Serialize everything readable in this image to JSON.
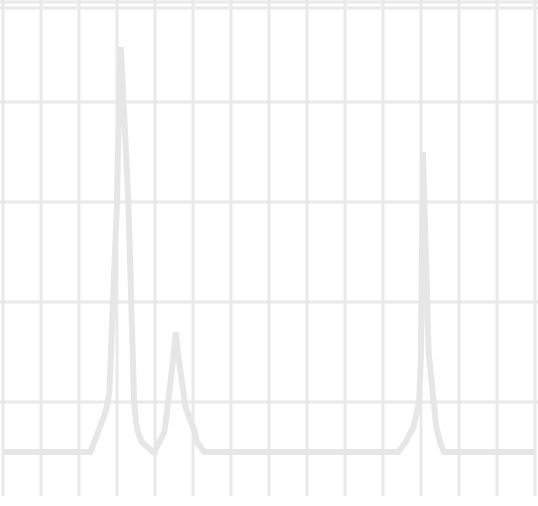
{
  "colors": {
    "grid": "#e9e9e9",
    "trace": "#e6e6e6",
    "background": "#ffffff"
  },
  "chart_data": {
    "type": "line",
    "title": "",
    "xlabel": "",
    "ylabel": "",
    "grid": true,
    "legend": "none",
    "xlim": [
      0,
      14
    ],
    "ylim": [
      0,
      5
    ],
    "grid_x": [
      0,
      1,
      2,
      3,
      4,
      5,
      6,
      7,
      8,
      9,
      10,
      11,
      12,
      13,
      14
    ],
    "grid_y": [
      0.5,
      1.5,
      2.5,
      3.5,
      4.5
    ],
    "series": [
      {
        "x": [
          0,
          2.3,
          2.4,
          2.55,
          2.7,
          2.8,
          3.0,
          3.05,
          3.1,
          3.3,
          3.45,
          3.5,
          3.55,
          3.65,
          3.8,
          3.95,
          4.0,
          4.05,
          4.25,
          4.5,
          4.55,
          4.6,
          4.8,
          5.05,
          5.1,
          5.2,
          5.3,
          5.45,
          5.55,
          5.6,
          10.4,
          10.5,
          10.6,
          10.8,
          10.95,
          11.0,
          11.05,
          11.2,
          11.4,
          11.5,
          11.6,
          14
        ],
        "y": [
          0,
          0,
          0.1,
          0.25,
          0.4,
          0.6,
          2.5,
          3.5,
          4.05,
          2.5,
          0.5,
          0.3,
          0.2,
          0.1,
          0.05,
          0,
          0,
          0.05,
          0.2,
          1.0,
          1.2,
          1.0,
          0.45,
          0.2,
          0.1,
          0.05,
          0,
          0,
          0,
          0,
          0,
          0.05,
          0.1,
          0.25,
          0.5,
          1.0,
          3.0,
          1.0,
          0.25,
          0.1,
          0,
          0
        ]
      }
    ]
  }
}
